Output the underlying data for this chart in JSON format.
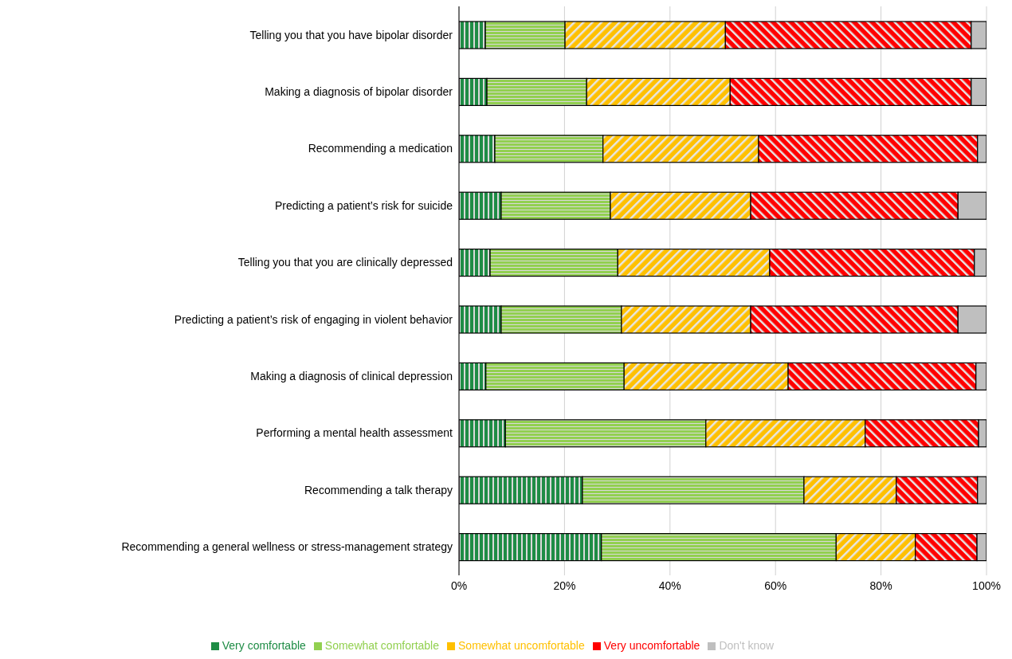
{
  "chart_data": {
    "type": "bar",
    "orientation": "horizontal",
    "stacked": true,
    "categories": [
      "Telling you that you have bipolar disorder",
      "Making a diagnosis of bipolar disorder",
      "Recommending a medication",
      "Predicting a patient’s risk for suicide",
      "Telling you that you are clinically depressed",
      "Predicting a patient’s risk of engaging in violent behavior",
      "Making a diagnosis of clinical depression",
      "Performing a mental health assessment",
      "Recommending a talk therapy",
      "Recommending a general wellness or stress-management strategy"
    ],
    "series": [
      {
        "name": "Very comfortable",
        "color": "#1e8c45",
        "values": [
          5.0,
          5.3,
          6.8,
          8.0,
          5.9,
          8.0,
          5.1,
          8.8,
          23.4,
          27.0
        ]
      },
      {
        "name": "Somewhat comfortable",
        "color": "#92d050",
        "values": [
          15.1,
          18.9,
          20.5,
          20.7,
          24.2,
          22.8,
          26.2,
          38.0,
          42.0,
          44.5
        ]
      },
      {
        "name": "Somewhat uncomfortable",
        "color": "#ffc000",
        "values": [
          30.4,
          27.2,
          29.5,
          26.6,
          28.8,
          24.5,
          31.1,
          30.2,
          17.5,
          15.0
        ]
      },
      {
        "name": "Very uncomfortable",
        "color": "#ff0000",
        "values": [
          46.6,
          45.7,
          41.5,
          39.3,
          38.8,
          39.3,
          35.6,
          21.5,
          15.4,
          11.7
        ]
      },
      {
        "name": "Don't know",
        "color": "#bfbfbf",
        "values": [
          2.9,
          2.9,
          1.7,
          5.4,
          2.3,
          5.4,
          2.0,
          1.5,
          1.7,
          1.8
        ]
      }
    ],
    "xlim": [
      0,
      100
    ],
    "xticks": [
      {
        "value": 0,
        "label": "0%"
      },
      {
        "value": 20,
        "label": "20%"
      },
      {
        "value": 40,
        "label": "40%"
      },
      {
        "value": 60,
        "label": "60%"
      },
      {
        "value": 80,
        "label": "80%"
      },
      {
        "value": 100,
        "label": "100%"
      }
    ],
    "grid": "x",
    "legend": "bottom"
  }
}
